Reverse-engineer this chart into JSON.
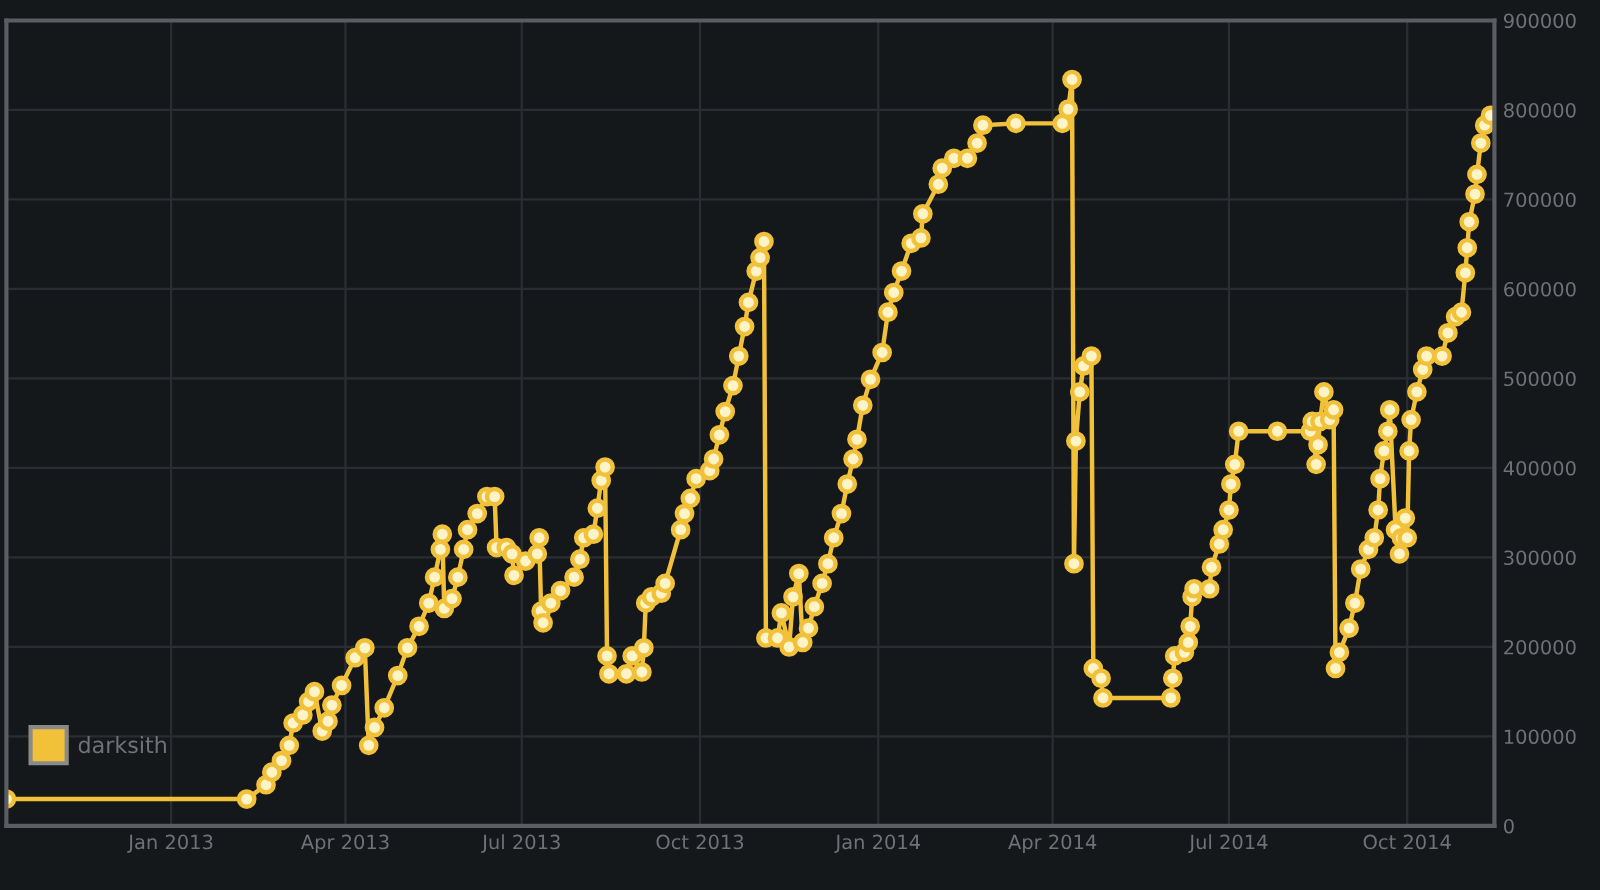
{
  "chart_data": {
    "type": "line",
    "series": [
      {
        "name": "darksith",
        "color": "#f2c13a",
        "x": [
          "2012-10-08",
          "2013-02-09",
          "2013-02-19",
          "2013-02-22",
          "2013-02-27",
          "2013-03-03",
          "2013-03-05",
          "2013-03-10",
          "2013-03-13",
          "2013-03-16",
          "2013-03-20",
          "2013-03-23",
          "2013-03-25",
          "2013-03-30",
          "2013-04-06",
          "2013-04-11",
          "2013-04-13",
          "2013-04-16",
          "2013-04-21",
          "2013-04-28",
          "2013-05-03",
          "2013-05-09",
          "2013-05-14",
          "2013-05-17",
          "2013-05-20",
          "2013-05-21",
          "2013-05-22",
          "2013-05-26",
          "2013-05-29",
          "2013-06-01",
          "2013-06-03",
          "2013-06-08",
          "2013-06-13",
          "2013-06-17",
          "2013-06-18",
          "2013-06-23",
          "2013-06-26",
          "2013-06-27",
          "2013-07-03",
          "2013-07-09",
          "2013-07-10",
          "2013-07-11",
          "2013-07-12",
          "2013-07-16",
          "2013-07-21",
          "2013-07-28",
          "2013-07-31",
          "2013-08-02",
          "2013-08-07",
          "2013-08-09",
          "2013-08-11",
          "2013-08-13",
          "2013-08-14",
          "2013-08-15",
          "2013-08-24",
          "2013-08-27",
          "2013-09-01",
          "2013-09-02",
          "2013-09-03",
          "2013-09-06",
          "2013-09-11",
          "2013-09-13",
          "2013-09-21",
          "2013-09-23",
          "2013-09-26",
          "2013-09-29",
          "2013-10-06",
          "2013-10-08",
          "2013-10-11",
          "2013-10-14",
          "2013-10-18",
          "2013-10-21",
          "2013-10-24",
          "2013-10-26",
          "2013-10-30",
          "2013-11-01",
          "2013-11-03",
          "2013-11-04",
          "2013-11-10",
          "2013-11-12",
          "2013-11-16",
          "2013-11-18",
          "2013-11-21",
          "2013-11-23",
          "2013-11-26",
          "2013-11-29",
          "2013-12-03",
          "2013-12-06",
          "2013-12-09",
          "2013-12-13",
          "2013-12-16",
          "2013-12-19",
          "2013-12-21",
          "2013-12-24",
          "2013-12-28",
          "2014-01-03",
          "2014-01-06",
          "2014-01-09",
          "2014-01-13",
          "2014-01-18",
          "2014-01-23",
          "2014-01-24",
          "2014-02-01",
          "2014-02-03",
          "2014-02-09",
          "2014-02-16",
          "2014-02-21",
          "2014-02-24",
          "2014-03-13",
          "2014-04-06",
          "2014-04-09",
          "2014-04-11",
          "2014-04-12",
          "2014-04-13",
          "2014-04-15",
          "2014-04-17",
          "2014-04-21",
          "2014-04-22",
          "2014-04-26",
          "2014-04-27",
          "2014-06-01",
          "2014-06-02",
          "2014-06-03",
          "2014-06-08",
          "2014-06-10",
          "2014-06-11",
          "2014-06-12",
          "2014-06-13",
          "2014-06-21",
          "2014-06-22",
          "2014-06-26",
          "2014-06-28",
          "2014-07-01",
          "2014-07-02",
          "2014-07-04",
          "2014-07-06",
          "2014-07-26",
          "2014-08-12",
          "2014-08-13",
          "2014-08-15",
          "2014-08-16",
          "2014-08-17",
          "2014-08-19",
          "2014-08-22",
          "2014-08-24",
          "2014-08-25",
          "2014-08-27",
          "2014-09-01",
          "2014-09-04",
          "2014-09-07",
          "2014-09-11",
          "2014-09-14",
          "2014-09-16",
          "2014-09-17",
          "2014-09-19",
          "2014-09-21",
          "2014-09-22",
          "2014-09-25",
          "2014-09-27",
          "2014-09-28",
          "2014-09-30",
          "2014-10-01",
          "2014-10-02",
          "2014-10-03",
          "2014-10-06",
          "2014-10-09",
          "2014-10-11",
          "2014-10-19",
          "2014-10-22",
          "2014-10-26",
          "2014-10-29",
          "2014-10-31",
          "2014-11-01",
          "2014-11-02",
          "2014-11-05",
          "2014-11-06",
          "2014-11-08",
          "2014-11-10",
          "2014-11-13"
        ],
        "values": [
          30000,
          30000,
          46000,
          60000,
          73000,
          90000,
          115000,
          124000,
          139000,
          150000,
          106000,
          117000,
          135000,
          157000,
          188000,
          199000,
          90000,
          110000,
          132000,
          168000,
          199000,
          223000,
          249000,
          278000,
          309000,
          326000,
          243000,
          254000,
          278000,
          309000,
          331000,
          349000,
          368000,
          368000,
          311000,
          311000,
          304000,
          280000,
          296000,
          304000,
          322000,
          240000,
          227000,
          249000,
          263000,
          278000,
          298000,
          322000,
          326000,
          355000,
          386000,
          401000,
          190000,
          170000,
          170000,
          190000,
          172000,
          199000,
          249000,
          256000,
          260000,
          271000,
          331000,
          349000,
          366000,
          388000,
          397000,
          410000,
          437000,
          463000,
          492000,
          525000,
          558000,
          585000,
          620000,
          635000,
          653000,
          210000,
          210000,
          238000,
          200000,
          256000,
          282000,
          205000,
          221000,
          245000,
          271000,
          293000,
          322000,
          349000,
          382000,
          410000,
          432000,
          470000,
          499000,
          529000,
          574000,
          596000,
          620000,
          651000,
          657000,
          684000,
          717000,
          735000,
          746000,
          746000,
          763000,
          783000,
          785000,
          785000,
          801000,
          834000,
          293000,
          430000,
          485000,
          514000,
          525000,
          176000,
          165000,
          143000,
          143000,
          165000,
          190000,
          194000,
          205000,
          223000,
          256000,
          265000,
          265000,
          289000,
          315000,
          331000,
          353000,
          382000,
          404000,
          441000,
          441000,
          441000,
          452000,
          404000,
          426000,
          452000,
          485000,
          454000,
          465000,
          176000,
          194000,
          221000,
          249000,
          287000,
          309000,
          322000,
          353000,
          388000,
          419000,
          441000,
          465000,
          331000,
          304000,
          322000,
          344000,
          322000,
          419000,
          454000,
          485000,
          510000,
          525000,
          525000,
          551000,
          569000,
          574000,
          618000,
          646000,
          675000,
          706000,
          728000,
          763000,
          783000,
          794000
        ]
      }
    ],
    "xlim": [
      "2012-10-08",
      "2014-11-15"
    ],
    "xticks": [
      {
        "value": "2013-01-01",
        "label": "Jan 2013"
      },
      {
        "value": "2013-04-01",
        "label": "Apr 2013"
      },
      {
        "value": "2013-07-01",
        "label": "Jul 2013"
      },
      {
        "value": "2013-10-01",
        "label": "Oct 2013"
      },
      {
        "value": "2014-01-01",
        "label": "Jan 2014"
      },
      {
        "value": "2014-04-01",
        "label": "Apr 2014"
      },
      {
        "value": "2014-07-01",
        "label": "Jul 2014"
      },
      {
        "value": "2014-10-01",
        "label": "Oct 2014"
      }
    ],
    "ylim": [
      0,
      900000
    ],
    "yticks": [
      0,
      100000,
      200000,
      300000,
      400000,
      500000,
      600000,
      700000,
      800000,
      900000
    ],
    "grid": true,
    "legend": "bottom left",
    "marker": "circle",
    "line_style": "solid"
  }
}
